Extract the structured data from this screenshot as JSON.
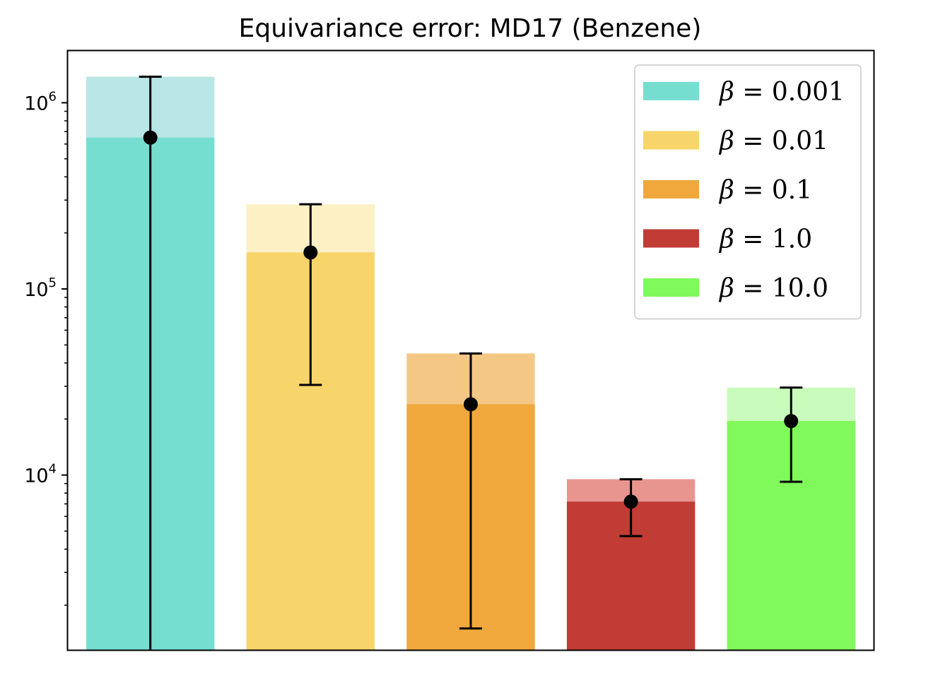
{
  "chart_data": {
    "type": "bar",
    "title": "Equivariance error: MD17 (Benzene)",
    "xlabel": "",
    "ylabel": "",
    "yscale": "log",
    "ylim": [
      1150,
      1900000
    ],
    "yticks": [
      {
        "value": 10000,
        "base": "10",
        "exp": "4"
      },
      {
        "value": 100000,
        "base": "10",
        "exp": "5"
      },
      {
        "value": 1000000,
        "base": "10",
        "exp": "6"
      }
    ],
    "grid": false,
    "legend_position": "top-right",
    "series": [
      {
        "name": "β = 0.001",
        "beta_symbol": "β",
        "beta_value": "= 0.001",
        "mean": 650000,
        "upper": 1380000,
        "lower": 1150,
        "color": "#76ddd1",
        "light_color": "#b9e6e6"
      },
      {
        "name": "β = 0.01",
        "beta_symbol": "β",
        "beta_value": "= 0.01",
        "mean": 157000,
        "upper": 285000,
        "lower": 30500,
        "color": "#f7d56a",
        "light_color": "#fcf0c4"
      },
      {
        "name": "β = 0.1",
        "beta_symbol": "β",
        "beta_value": "= 0.1",
        "mean": 24000,
        "upper": 45000,
        "lower": 1500,
        "color": "#f0a83c",
        "light_color": "#f4c785"
      },
      {
        "name": "β = 1.0",
        "beta_symbol": "β",
        "beta_value": "= 1.0",
        "mean": 7200,
        "upper": 9500,
        "lower": 4700,
        "color": "#c03c35",
        "light_color": "#e8958f"
      },
      {
        "name": "β = 10.0",
        "beta_symbol": "β",
        "beta_value": "= 10.0",
        "mean": 19500,
        "upper": 29500,
        "lower": 9200,
        "color": "#80f95a",
        "light_color": "#c8fbbc"
      }
    ]
  }
}
